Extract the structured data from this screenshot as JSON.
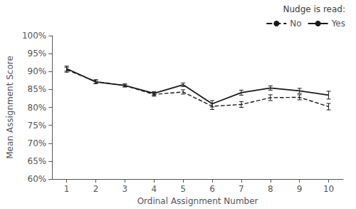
{
  "chart_data": {
    "type": "line",
    "xlabel": "Ordinal Assignment Number",
    "ylabel": "Mean Assignment Score",
    "legend_title": "Nudge is read:",
    "x": [
      1,
      2,
      3,
      4,
      5,
      6,
      7,
      8,
      9,
      10
    ],
    "series": [
      {
        "name": "No",
        "color": "#1a1a1a",
        "line_style": "dashed",
        "values": [
          0.905,
          0.872,
          0.861,
          0.836,
          0.843,
          0.803,
          0.808,
          0.827,
          0.828,
          0.802
        ],
        "errors": [
          0.007,
          0.005,
          0.004,
          0.005,
          0.006,
          0.009,
          0.008,
          0.008,
          0.007,
          0.009
        ]
      },
      {
        "name": "Yes",
        "color": "#1a1a1a",
        "line_style": "solid",
        "values": [
          0.908,
          0.871,
          0.861,
          0.839,
          0.863,
          0.81,
          0.841,
          0.854,
          0.846,
          0.834
        ],
        "errors": [
          0.007,
          0.005,
          0.004,
          0.005,
          0.005,
          0.009,
          0.007,
          0.006,
          0.007,
          0.011
        ]
      }
    ],
    "xlim": [
      0.5,
      10.5
    ],
    "xticks": [
      1,
      2,
      3,
      4,
      5,
      6,
      7,
      8,
      9,
      10
    ],
    "ylim": [
      0.6,
      1.0
    ],
    "yticks": [
      {
        "value": 0.6,
        "label": "60%"
      },
      {
        "value": 0.65,
        "label": "65%"
      },
      {
        "value": 0.7,
        "label": "70%"
      },
      {
        "value": 0.75,
        "label": "75%"
      },
      {
        "value": 0.8,
        "label": "80%"
      },
      {
        "value": 0.85,
        "label": "85%"
      },
      {
        "value": 0.9,
        "label": "90%"
      },
      {
        "value": 0.95,
        "label": "95%"
      },
      {
        "value": 1.0,
        "label": "100%"
      }
    ],
    "grid": false,
    "legend": "upper right"
  }
}
